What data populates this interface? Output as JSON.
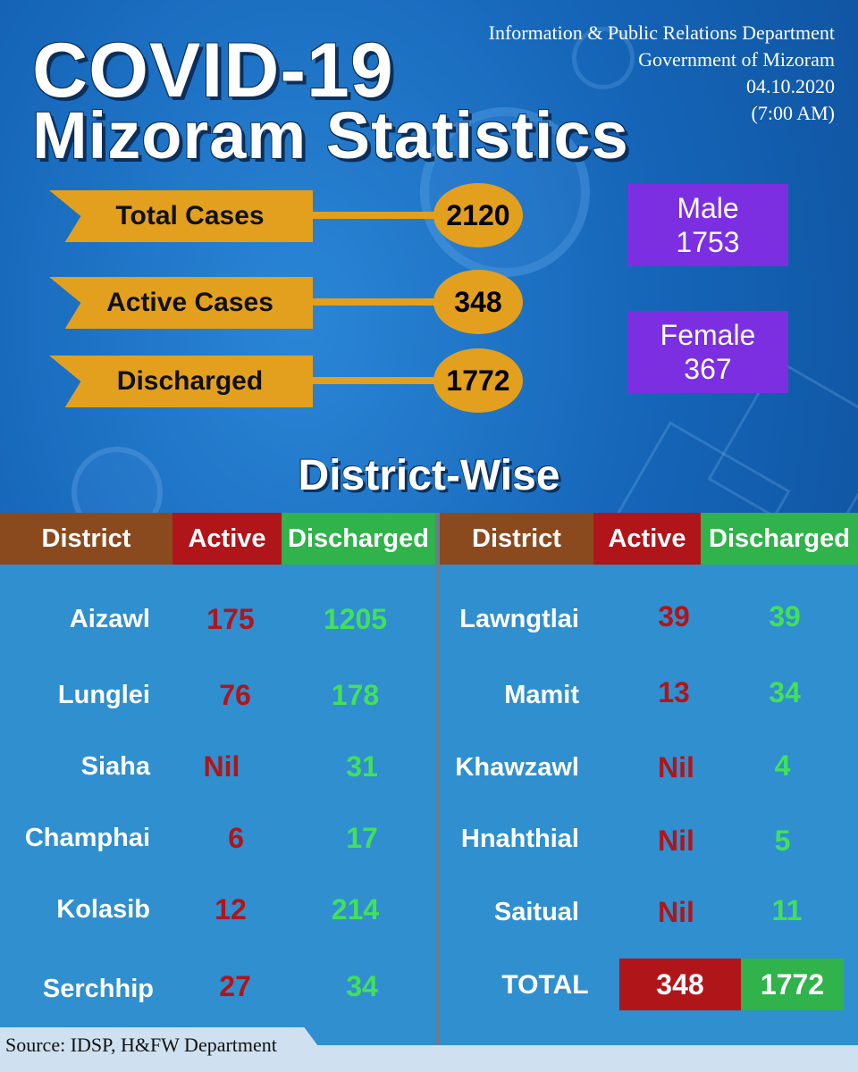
{
  "header": {
    "title_line1": "COVID-19",
    "title_line2": "Mizoram Statistics",
    "dept_line1": "Information & Public Relations Department",
    "dept_line2": "Government of Mizoram",
    "date": "04.10.2020",
    "time": "(7:00 AM)"
  },
  "stats": {
    "total": {
      "label": "Total Cases",
      "value": "2120"
    },
    "active": {
      "label": "Active Cases",
      "value": "348"
    },
    "discharged": {
      "label": "Discharged",
      "value": "1772"
    }
  },
  "gender": {
    "male_label": "Male",
    "male_value": "1753",
    "female_label": "Female",
    "female_value": "367"
  },
  "district_title": "District-Wise",
  "table": {
    "headers": {
      "district": "District",
      "active": "Active",
      "discharged": "Discharged"
    },
    "left": [
      {
        "district": "Aizawl",
        "active": "175",
        "discharged": "1205"
      },
      {
        "district": "Lunglei",
        "active": "76",
        "discharged": "178"
      },
      {
        "district": "Siaha",
        "active": "Nil",
        "discharged": "31"
      },
      {
        "district": "Champhai",
        "active": "6",
        "discharged": "17"
      },
      {
        "district": "Kolasib",
        "active": "12",
        "discharged": "214"
      },
      {
        "district": "Serchhip",
        "active": "27",
        "discharged": "34"
      }
    ],
    "right": [
      {
        "district": "Lawngtlai",
        "active": "39",
        "discharged": "39"
      },
      {
        "district": "Mamit",
        "active": "13",
        "discharged": "34"
      },
      {
        "district": "Khawzawl",
        "active": "Nil",
        "discharged": "4"
      },
      {
        "district": "Hnahthial",
        "active": "Nil",
        "discharged": "5"
      },
      {
        "district": "Saitual",
        "active": "Nil",
        "discharged": "11"
      }
    ],
    "total": {
      "label": "TOTAL",
      "active": "348",
      "discharged": "1772"
    }
  },
  "source": "Source: IDSP, H&FW Department",
  "colors": {
    "ribbon": "#e2a01e",
    "gender_box": "#7b2fe0",
    "active": "#b0151a",
    "discharged": "#2fb34a",
    "district_header": "#8a4a1e"
  }
}
